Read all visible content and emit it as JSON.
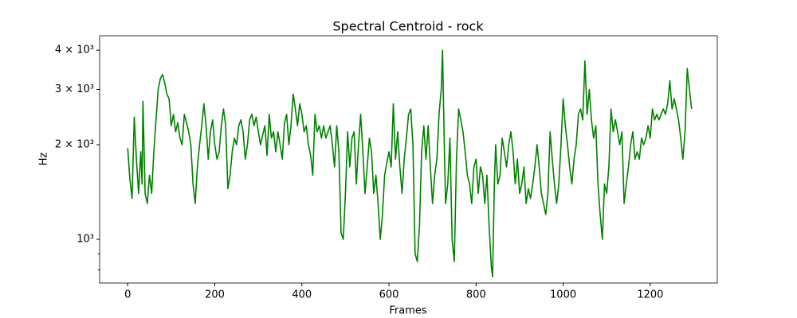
{
  "chart_data": {
    "type": "line",
    "title": "Spectral Centroid - rock",
    "x_label": "Frames",
    "y_label": "Hz",
    "color": "#008000",
    "y_scale": "log",
    "xlim": [
      -64.5,
      1354
    ],
    "ylim": [
      726,
      4446
    ],
    "xticks": [
      0,
      200,
      400,
      600,
      800,
      1000,
      1200
    ],
    "yticks": [
      {
        "value": 1000,
        "label": "10³"
      },
      {
        "value": 2000,
        "label": "2 × 10³"
      },
      {
        "value": 3000,
        "label": "3 × 10³"
      },
      {
        "value": 4000,
        "label": "4 × 10³"
      }
    ],
    "yminorticks": [
      800,
      900
    ],
    "x": [
      0,
      5,
      10,
      15,
      20,
      25,
      30,
      33,
      35,
      40,
      45,
      50,
      55,
      60,
      65,
      70,
      75,
      80,
      85,
      90,
      95,
      100,
      105,
      110,
      115,
      120,
      125,
      130,
      135,
      140,
      145,
      150,
      155,
      160,
      165,
      170,
      175,
      180,
      185,
      190,
      195,
      200,
      205,
      210,
      215,
      220,
      225,
      230,
      235,
      240,
      245,
      250,
      255,
      260,
      265,
      270,
      275,
      280,
      285,
      290,
      295,
      300,
      305,
      310,
      315,
      320,
      325,
      330,
      335,
      340,
      345,
      350,
      355,
      360,
      365,
      370,
      375,
      380,
      385,
      390,
      395,
      400,
      405,
      410,
      415,
      420,
      425,
      430,
      435,
      440,
      445,
      450,
      455,
      460,
      465,
      470,
      475,
      480,
      485,
      490,
      495,
      500,
      505,
      510,
      515,
      520,
      525,
      530,
      535,
      540,
      545,
      550,
      555,
      560,
      565,
      570,
      575,
      580,
      585,
      590,
      595,
      600,
      605,
      610,
      615,
      620,
      625,
      630,
      635,
      640,
      645,
      650,
      655,
      660,
      665,
      670,
      675,
      680,
      685,
      690,
      695,
      700,
      705,
      710,
      715,
      720,
      723,
      727,
      730,
      735,
      740,
      745,
      750,
      755,
      760,
      765,
      770,
      775,
      780,
      785,
      790,
      795,
      800,
      805,
      810,
      815,
      820,
      825,
      830,
      835,
      838,
      842,
      845,
      850,
      855,
      860,
      865,
      870,
      875,
      880,
      885,
      890,
      895,
      900,
      905,
      910,
      915,
      920,
      925,
      930,
      935,
      940,
      945,
      950,
      955,
      960,
      965,
      970,
      975,
      980,
      985,
      990,
      995,
      1000,
      1005,
      1010,
      1015,
      1020,
      1025,
      1030,
      1035,
      1040,
      1045,
      1050,
      1055,
      1060,
      1065,
      1070,
      1075,
      1080,
      1085,
      1090,
      1095,
      1100,
      1105,
      1110,
      1115,
      1120,
      1125,
      1130,
      1135,
      1140,
      1145,
      1150,
      1155,
      1160,
      1165,
      1170,
      1175,
      1180,
      1185,
      1190,
      1195,
      1200,
      1205,
      1210,
      1215,
      1220,
      1225,
      1230,
      1235,
      1240,
      1245,
      1250,
      1255,
      1260,
      1265,
      1270,
      1275,
      1280,
      1285,
      1290,
      1295
    ],
    "values": [
      1950,
      1550,
      1350,
      2450,
      1800,
      1400,
      1900,
      1500,
      2750,
      1400,
      1300,
      1600,
      1400,
      1900,
      2400,
      3000,
      3250,
      3350,
      3150,
      2900,
      2800,
      2300,
      2500,
      2200,
      2350,
      2100,
      2000,
      2500,
      2350,
      2200,
      2000,
      1500,
      1300,
      1700,
      2000,
      2300,
      2700,
      2300,
      1800,
      2200,
      2400,
      2000,
      1800,
      1900,
      2300,
      2600,
      2300,
      1450,
      1600,
      1900,
      2100,
      2000,
      2300,
      2400,
      2200,
      1800,
      2000,
      2400,
      2500,
      2300,
      2450,
      2200,
      2000,
      2150,
      2300,
      1850,
      2500,
      2100,
      2200,
      1900,
      2200,
      2000,
      1800,
      2350,
      2500,
      2000,
      2300,
      2900,
      2600,
      2300,
      2700,
      2500,
      2200,
      2300,
      2000,
      1850,
      1600,
      2500,
      2200,
      2300,
      2100,
      2300,
      2100,
      2200,
      2300,
      2000,
      1700,
      2300,
      1900,
      1050,
      1000,
      1400,
      2200,
      1700,
      2100,
      2200,
      1500,
      2000,
      2500,
      1900,
      1400,
      1700,
      2100,
      1900,
      1400,
      1600,
      1300,
      1000,
      1200,
      1600,
      1750,
      1900,
      1700,
      2700,
      1800,
      2200,
      1700,
      1400,
      1800,
      2100,
      2500,
      2600,
      2000,
      900,
      850,
      1100,
      1900,
      2300,
      1800,
      2300,
      1700,
      1300,
      1600,
      1800,
      2500,
      3000,
      4000,
      2000,
      1300,
      1500,
      2100,
      1000,
      850,
      1800,
      2600,
      2400,
      2200,
      1900,
      1600,
      1500,
      1300,
      1700,
      1800,
      1400,
      1700,
      1600,
      1300,
      1600,
      1100,
      820,
      760,
      1500,
      2000,
      1500,
      1600,
      2100,
      1900,
      1700,
      2000,
      2200,
      1900,
      1500,
      1800,
      1400,
      1500,
      1700,
      1300,
      1450,
      1350,
      1500,
      1700,
      2000,
      1700,
      1400,
      1300,
      1200,
      1400,
      2200,
      1800,
      1500,
      1300,
      1500,
      2000,
      2800,
      2300,
      2000,
      1700,
      1500,
      1800,
      2000,
      2500,
      2600,
      2400,
      3700,
      2500,
      3000,
      2400,
      2100,
      2300,
      1500,
      1200,
      1000,
      1500,
      1400,
      1700,
      2600,
      2200,
      2400,
      2200,
      2000,
      2200,
      1300,
      1500,
      1700,
      2000,
      2200,
      1800,
      1900,
      1800,
      2100,
      2000,
      2100,
      2300,
      2100,
      2600,
      2400,
      2500,
      2400,
      2500,
      2600,
      2500,
      2700,
      3200,
      2600,
      2800,
      2600,
      2400,
      2100,
      1800,
      2200,
      3500,
      3000,
      2600
    ]
  }
}
